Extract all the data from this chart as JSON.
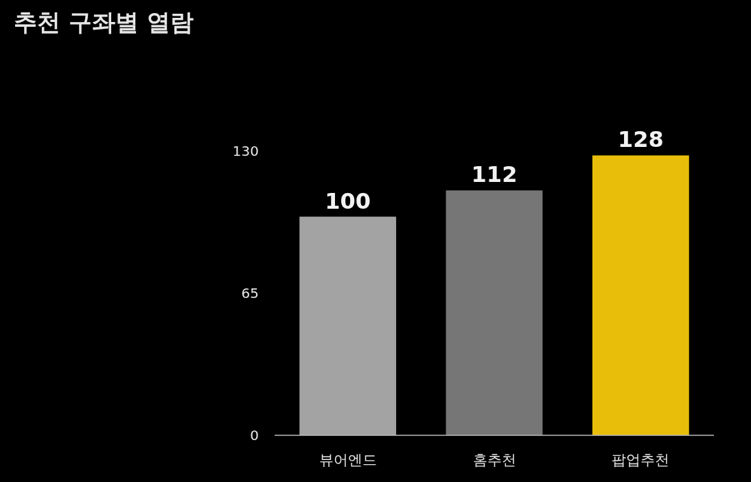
{
  "chart_data": {
    "type": "bar",
    "title": "추천 구좌별 열람",
    "categories": [
      "뷰어엔드",
      "홈추천",
      "팝업추천"
    ],
    "values": [
      100,
      112,
      128
    ],
    "colors": [
      "#a3a3a3",
      "#767676",
      "#e8be0b"
    ],
    "ylim": [
      0,
      130
    ],
    "yticks": [
      0,
      65,
      130
    ],
    "data_labels": true,
    "grid": false
  }
}
